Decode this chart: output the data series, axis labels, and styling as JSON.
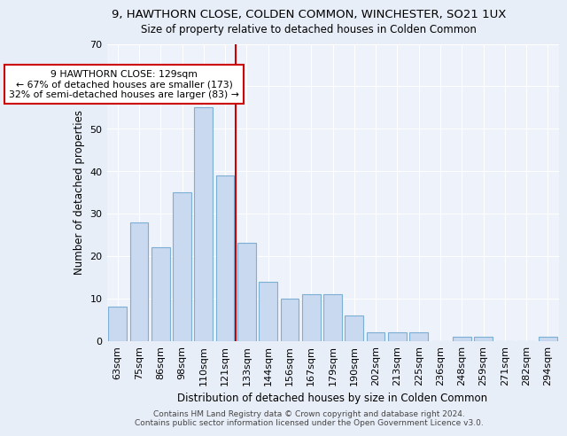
{
  "title": "9, HAWTHORN CLOSE, COLDEN COMMON, WINCHESTER, SO21 1UX",
  "subtitle": "Size of property relative to detached houses in Colden Common",
  "xlabel": "Distribution of detached houses by size in Colden Common",
  "ylabel": "Number of detached properties",
  "categories": [
    "63sqm",
    "75sqm",
    "86sqm",
    "98sqm",
    "110sqm",
    "121sqm",
    "133sqm",
    "144sqm",
    "156sqm",
    "167sqm",
    "179sqm",
    "190sqm",
    "202sqm",
    "213sqm",
    "225sqm",
    "236sqm",
    "248sqm",
    "259sqm",
    "271sqm",
    "282sqm",
    "294sqm"
  ],
  "values": [
    8,
    28,
    22,
    35,
    55,
    39,
    23,
    14,
    10,
    11,
    11,
    6,
    2,
    2,
    2,
    0,
    1,
    1,
    0,
    0,
    1
  ],
  "bar_color": "#c9d9f0",
  "bar_edge_color": "#7bafd4",
  "vline_x": 5.5,
  "vline_color": "#cc0000",
  "ylim": [
    0,
    70
  ],
  "yticks": [
    0,
    10,
    20,
    30,
    40,
    50,
    60,
    70
  ],
  "annotation_text": "9 HAWTHORN CLOSE: 129sqm\n← 67% of detached houses are smaller (173)\n32% of semi-detached houses are larger (83) →",
  "annotation_box_color": "#cc0000",
  "footer1": "Contains HM Land Registry data © Crown copyright and database right 2024.",
  "footer2": "Contains public sector information licensed under the Open Government Licence v3.0.",
  "bg_color": "#e8eef8",
  "plot_bg_color": "#eef2fb"
}
